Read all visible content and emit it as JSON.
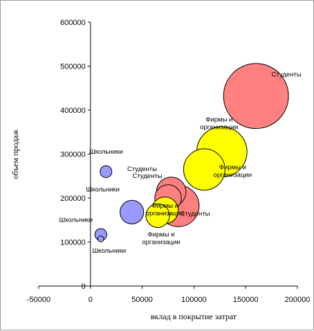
{
  "chart_data": {
    "type": "scatter",
    "bubble": true,
    "title": "",
    "xlabel": "вклад в покрытие затрат",
    "ylabel": "объем продаж",
    "xlim": [
      -50000,
      200000
    ],
    "ylim": [
      0,
      600000
    ],
    "x_ticks": [
      "-50000",
      "0",
      "50000",
      "100000",
      "150000",
      "200000"
    ],
    "y_ticks": [
      "0",
      "100000",
      "200000",
      "300000",
      "400000",
      "500000",
      "600000"
    ],
    "grid": false,
    "legend": "none",
    "colors": {
      "schoolchildren": "#9999ff",
      "students": "#ff8080",
      "firms": "#ffff00",
      "outline": "#000000",
      "axis": "#000000"
    },
    "series": [
      {
        "group": "schoolchildren",
        "points": [
          {
            "x": 15000,
            "y": 260000,
            "size": 4,
            "label": "Школьники",
            "label_pos": "above"
          },
          {
            "x": 40000,
            "y": 168000,
            "size": 8,
            "label": "Школьники",
            "label_pos": "left-up"
          },
          {
            "x": 10000,
            "y": 117000,
            "size": 4,
            "label": "Школьники",
            "label_pos": "left"
          },
          {
            "x": 10000,
            "y": 107000,
            "size": 2,
            "label": "Школьники",
            "label_pos": "below"
          }
        ]
      },
      {
        "group": "students",
        "points": [
          {
            "x": 160000,
            "y": 432000,
            "size": 22,
            "label": "Студенты",
            "label_pos": "right-up"
          },
          {
            "x": 78000,
            "y": 214000,
            "size": 10,
            "label": "Студенты",
            "label_pos": "left-up"
          },
          {
            "x": 75000,
            "y": 200000,
            "size": 9,
            "label": "Студенты",
            "label_pos": "left-up2"
          },
          {
            "x": 85000,
            "y": 182000,
            "size": 14,
            "label": "Студенты",
            "label_pos": "right-down"
          }
        ]
      },
      {
        "group": "firms",
        "points": [
          {
            "x": 127000,
            "y": 305000,
            "size": 17,
            "label": "Фирмы и организации",
            "label_pos": "above"
          },
          {
            "x": 110000,
            "y": 265000,
            "size": 14,
            "label": "Фирмы и организации",
            "label_pos": "below-right"
          },
          {
            "x": 65000,
            "y": 160000,
            "size": 8,
            "label": "Фирмы и организации",
            "label_pos": "below"
          },
          {
            "x": 72000,
            "y": 172000,
            "size": 9,
            "label": "Фирмы и организации",
            "label_pos": "center"
          }
        ]
      }
    ]
  }
}
